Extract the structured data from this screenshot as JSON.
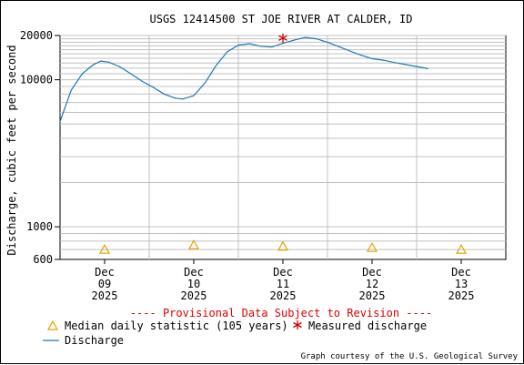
{
  "chart_data": {
    "type": "line",
    "title": "USGS 12414500 ST JOE RIVER AT CALDER, ID",
    "xlabel": "",
    "ylabel": "Discharge, cubic feet per second",
    "y_scale": "log",
    "ylim": [
      600,
      20000
    ],
    "xlim": [
      "2025-12-09 00:00",
      "2025-12-14 00:00"
    ],
    "grid": true,
    "legend_placement": "bottom-left",
    "y_ticks": [
      {
        "value": 20000,
        "label": "20000"
      },
      {
        "value": 10000,
        "label": "10000"
      },
      {
        "value": 1000,
        "label": "1000"
      },
      {
        "value": 600,
        "label": "600"
      }
    ],
    "x_ticks": [
      {
        "value": "2025-12-09 12:00",
        "month": "Dec",
        "day": "09",
        "year": "2025"
      },
      {
        "value": "2025-12-10 12:00",
        "month": "Dec",
        "day": "10",
        "year": "2025"
      },
      {
        "value": "2025-12-11 12:00",
        "month": "Dec",
        "day": "11",
        "year": "2025"
      },
      {
        "value": "2025-12-12 12:00",
        "month": "Dec",
        "day": "12",
        "year": "2025"
      },
      {
        "value": "2025-12-13 12:00",
        "month": "Dec",
        "day": "13",
        "year": "2025"
      }
    ],
    "series": [
      {
        "name": "Discharge",
        "color": "#1f77b4",
        "points": [
          [
            "2025-12-09 00:00",
            5200
          ],
          [
            "2025-12-09 03:00",
            8500
          ],
          [
            "2025-12-09 06:00",
            11000
          ],
          [
            "2025-12-09 09:00",
            12700
          ],
          [
            "2025-12-09 11:00",
            13400
          ],
          [
            "2025-12-09 13:00",
            13200
          ],
          [
            "2025-12-09 16:00",
            12300
          ],
          [
            "2025-12-09 19:00",
            11000
          ],
          [
            "2025-12-09 22:00",
            9800
          ],
          [
            "2025-12-10 01:00",
            8900
          ],
          [
            "2025-12-10 04:00",
            8000
          ],
          [
            "2025-12-10 07:00",
            7500
          ],
          [
            "2025-12-10 09:00",
            7400
          ],
          [
            "2025-12-10 12:00",
            7800
          ],
          [
            "2025-12-10 15:00",
            9500
          ],
          [
            "2025-12-10 18:00",
            12500
          ],
          [
            "2025-12-10 21:00",
            15500
          ],
          [
            "2025-12-11 00:00",
            17200
          ],
          [
            "2025-12-11 03:00",
            17600
          ],
          [
            "2025-12-11 06:00",
            16900
          ],
          [
            "2025-12-11 09:00",
            16700
          ],
          [
            "2025-12-11 12:00",
            17700
          ],
          [
            "2025-12-11 15:00",
            18600
          ],
          [
            "2025-12-11 18:00",
            19400
          ],
          [
            "2025-12-11 21:00",
            19000
          ],
          [
            "2025-12-12 00:00",
            18000
          ],
          [
            "2025-12-12 03:00",
            16800
          ],
          [
            "2025-12-12 06:00",
            15700
          ],
          [
            "2025-12-12 09:00",
            14700
          ],
          [
            "2025-12-12 12:00",
            13900
          ],
          [
            "2025-12-12 15:00",
            13600
          ],
          [
            "2025-12-12 18:00",
            13100
          ],
          [
            "2025-12-12 21:00",
            12700
          ],
          [
            "2025-12-13 00:00",
            12300
          ],
          [
            "2025-12-13 03:00",
            11900
          ]
        ]
      },
      {
        "name": "Median daily statistic (105 years)",
        "marker": "triangle",
        "color": "#e8a000",
        "points": [
          [
            "2025-12-09 12:00",
            700
          ],
          [
            "2025-12-10 12:00",
            750
          ],
          [
            "2025-12-11 12:00",
            735
          ],
          [
            "2025-12-12 12:00",
            720
          ],
          [
            "2025-12-13 12:00",
            700
          ]
        ]
      },
      {
        "name": "Measured discharge",
        "marker": "asterisk",
        "color": "#cc0000",
        "points": [
          [
            "2025-12-11 12:00",
            19200
          ]
        ]
      }
    ],
    "annotations": {
      "provisional": "---- Provisional Data Subject to Revision ----",
      "courtesy": "Graph courtesy of the U.S. Geological Survey"
    },
    "legend": {
      "median": "Median daily statistic (105 years)",
      "measured": "Measured discharge",
      "discharge": "Discharge"
    }
  }
}
